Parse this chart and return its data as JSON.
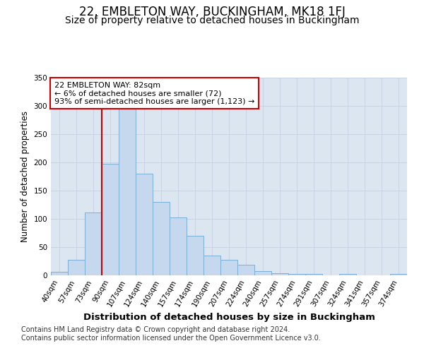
{
  "title": "22, EMBLETON WAY, BUCKINGHAM, MK18 1FJ",
  "subtitle": "Size of property relative to detached houses in Buckingham",
  "xlabel": "Distribution of detached houses by size in Buckingham",
  "ylabel": "Number of detached properties",
  "categories": [
    "40sqm",
    "57sqm",
    "73sqm",
    "90sqm",
    "107sqm",
    "124sqm",
    "140sqm",
    "157sqm",
    "174sqm",
    "190sqm",
    "207sqm",
    "224sqm",
    "240sqm",
    "257sqm",
    "274sqm",
    "291sqm",
    "307sqm",
    "324sqm",
    "341sqm",
    "357sqm",
    "374sqm"
  ],
  "values": [
    6,
    28,
    111,
    198,
    295,
    180,
    130,
    102,
    70,
    35,
    28,
    19,
    8,
    4,
    3,
    3,
    0,
    2,
    0,
    0,
    2
  ],
  "bar_color": "#c5d8ed",
  "bar_edge_color": "#7bafd4",
  "vline_color": "#cc0000",
  "vline_x_index": 3,
  "annotation_line1": "22 EMBLETON WAY: 82sqm",
  "annotation_line2": "← 6% of detached houses are smaller (72)",
  "annotation_line3": "93% of semi-detached houses are larger (1,123) →",
  "annotation_box_facecolor": "#ffffff",
  "annotation_box_edgecolor": "#cc0000",
  "ylim": [
    0,
    350
  ],
  "yticks": [
    0,
    50,
    100,
    150,
    200,
    250,
    300,
    350
  ],
  "grid_color": "#c8d4e3",
  "plot_bg_color": "#dce6f1",
  "fig_bg_color": "#ffffff",
  "title_fontsize": 12,
  "subtitle_fontsize": 10,
  "xlabel_fontsize": 9.5,
  "ylabel_fontsize": 8.5,
  "tick_fontsize": 7.5,
  "annotation_fontsize": 8,
  "footer_fontsize": 7,
  "footer_line1": "Contains HM Land Registry data © Crown copyright and database right 2024.",
  "footer_line2": "Contains public sector information licensed under the Open Government Licence v3.0."
}
